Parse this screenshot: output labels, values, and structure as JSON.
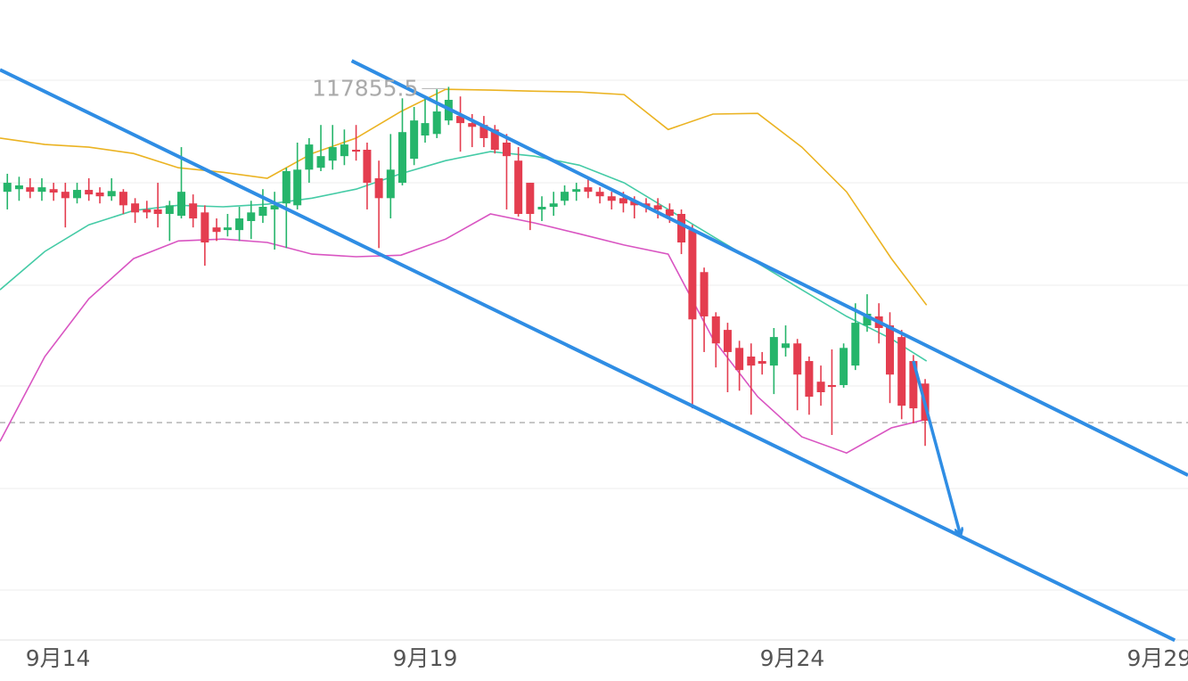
{
  "chart_data": {
    "type": "candlestick",
    "x": [
      13.31,
      13.47,
      13.62,
      13.78,
      13.94,
      14.1,
      14.26,
      14.42,
      14.57,
      14.73,
      14.89,
      15.05,
      15.21,
      15.36,
      15.52,
      15.68,
      15.84,
      16.0,
      16.16,
      16.31,
      16.47,
      16.63,
      16.79,
      16.95,
      17.11,
      17.26,
      17.42,
      17.58,
      17.74,
      17.9,
      18.06,
      18.21,
      18.37,
      18.53,
      18.69,
      18.85,
      19.0,
      19.16,
      19.32,
      19.48,
      19.64,
      19.8,
      19.95,
      20.11,
      20.27,
      20.43,
      20.59,
      20.75,
      20.9,
      21.06,
      21.22,
      21.38,
      21.54,
      21.7,
      21.85,
      22.01,
      22.17,
      22.33,
      22.49,
      22.64,
      22.8,
      22.96,
      23.12,
      23.28,
      23.44,
      23.59,
      23.75,
      23.91,
      24.07,
      24.23,
      24.39,
      24.54,
      24.7,
      24.86,
      25.02,
      25.18,
      25.33,
      25.49,
      25.65,
      25.81
    ],
    "open": [
      115060,
      115130,
      115180,
      115060,
      115130,
      115060,
      114890,
      115110,
      115040,
      114940,
      115060,
      114750,
      114590,
      114590,
      114470,
      114420,
      114750,
      114510,
      114110,
      114040,
      114040,
      114280,
      114420,
      114590,
      114750,
      114700,
      115650,
      115700,
      115890,
      116010,
      116180,
      116180,
      115420,
      114890,
      115300,
      115940,
      116560,
      116600,
      116960,
      117080,
      116890,
      116840,
      116720,
      116370,
      115890,
      115300,
      114590,
      114660,
      114820,
      115060,
      115180,
      115060,
      114940,
      114890,
      114820,
      114750,
      114700,
      114590,
      114470,
      114040,
      112920,
      111740,
      111380,
      110900,
      110670,
      110550,
      110430,
      110900,
      111020,
      110550,
      110000,
      109910,
      109910,
      110430,
      111500,
      111740,
      111500,
      111190,
      110550,
      109950
    ],
    "high": [
      115540,
      115460,
      115420,
      115420,
      115300,
      115300,
      115300,
      115420,
      115180,
      115420,
      115130,
      114890,
      114820,
      115300,
      114820,
      116250,
      114990,
      114700,
      114350,
      114470,
      114660,
      114820,
      115130,
      115060,
      115700,
      116370,
      116490,
      116840,
      116840,
      116720,
      116840,
      116370,
      115890,
      116600,
      117550,
      117320,
      117550,
      117790,
      117855.5,
      117600,
      117130,
      117080,
      116840,
      116600,
      116250,
      115300,
      114940,
      115060,
      115230,
      115300,
      115420,
      115180,
      115060,
      115060,
      114940,
      114890,
      114890,
      114750,
      114590,
      114180,
      113040,
      111850,
      111570,
      111090,
      111020,
      110790,
      111430,
      111500,
      111140,
      110670,
      110430,
      110860,
      111020,
      112090,
      112330,
      112090,
      111850,
      111380,
      110710,
      110070
    ],
    "low": [
      114590,
      114820,
      114890,
      114820,
      114820,
      114110,
      114750,
      114820,
      114750,
      114820,
      114470,
      114230,
      114350,
      114110,
      113750,
      114350,
      114110,
      113090,
      113750,
      113870,
      113750,
      113800,
      114230,
      113520,
      113560,
      114590,
      115300,
      115610,
      115650,
      115770,
      115890,
      114590,
      113560,
      114350,
      115230,
      115770,
      116370,
      116490,
      116840,
      116130,
      116250,
      116250,
      116080,
      114590,
      114400,
      114040,
      114280,
      114420,
      114700,
      114820,
      114890,
      114750,
      114590,
      114510,
      114350,
      114510,
      114350,
      114230,
      113400,
      109290,
      110790,
      110380,
      109720,
      109760,
      109120,
      110190,
      109670,
      110670,
      109240,
      109120,
      109360,
      108580,
      109840,
      110310,
      111330,
      111020,
      109430,
      109000,
      108890,
      108290
    ],
    "close": [
      115300,
      115230,
      115060,
      115180,
      115040,
      114890,
      115110,
      114990,
      114940,
      115080,
      114700,
      114510,
      114510,
      114470,
      114700,
      115060,
      114350,
      113710,
      113990,
      114110,
      114350,
      114510,
      114660,
      114700,
      115610,
      115650,
      116320,
      116010,
      116250,
      116320,
      116130,
      115300,
      114890,
      115650,
      116650,
      116960,
      116890,
      117200,
      117510,
      116890,
      116790,
      116490,
      116180,
      116010,
      114470,
      114470,
      114660,
      114750,
      115060,
      115130,
      115060,
      114940,
      114820,
      114750,
      114700,
      114660,
      114590,
      114420,
      113710,
      111660,
      111740,
      111020,
      110790,
      110310,
      110430,
      110480,
      111190,
      111020,
      110190,
      109600,
      109720,
      109860,
      110900,
      111570,
      111810,
      111430,
      110190,
      109360,
      109290,
      108960
    ],
    "up_color": "#26b56b",
    "down_color": "#e43d4f",
    "xlim": [
      13.21,
      29.39
    ],
    "ylim": [
      103070,
      120170
    ],
    "xticks": [
      {
        "value": 14,
        "label": "9月14"
      },
      {
        "value": 19,
        "label": "9月19"
      },
      {
        "value": 24,
        "label": "9月24"
      },
      {
        "value": 29,
        "label": "9月29"
      }
    ],
    "overlays": [
      {
        "color": "#ebb322",
        "x": [
          13.21,
          13.82,
          14.42,
          15.03,
          15.64,
          16.25,
          16.85,
          17.46,
          18.06,
          18.67,
          19.28,
          19.89,
          20.49,
          21.1,
          21.71,
          22.31,
          22.92,
          23.53,
          24.13,
          24.74,
          25.35,
          25.83
        ],
        "values": [
          116490,
          116320,
          116250,
          116080,
          115700,
          115580,
          115420,
          116080,
          116490,
          117200,
          117790,
          117770,
          117740,
          117720,
          117650,
          116720,
          117130,
          117150,
          116250,
          115060,
          113280,
          112040
        ]
      },
      {
        "color": "#45cba6",
        "x": [
          13.21,
          13.82,
          14.42,
          15.03,
          15.64,
          16.25,
          16.85,
          17.46,
          18.06,
          18.67,
          19.28,
          19.89,
          20.49,
          21.1,
          21.71,
          22.31,
          22.92,
          23.53,
          24.13,
          24.74,
          25.35,
          25.83
        ],
        "values": [
          112450,
          113470,
          114180,
          114560,
          114700,
          114660,
          114730,
          114890,
          115130,
          115540,
          115890,
          116130,
          116010,
          115770,
          115300,
          114590,
          113870,
          113160,
          112450,
          111740,
          111140,
          110550
        ]
      },
      {
        "color": "#d955c2",
        "x": [
          13.21,
          13.82,
          14.42,
          15.03,
          15.64,
          16.25,
          16.85,
          17.46,
          18.06,
          18.67,
          19.28,
          19.89,
          20.49,
          21.1,
          21.71,
          22.31,
          22.92,
          23.53,
          24.13,
          24.74,
          25.35,
          25.83
        ],
        "values": [
          108410,
          110670,
          112210,
          113280,
          113750,
          113800,
          113710,
          113400,
          113330,
          113370,
          113800,
          114470,
          114230,
          113940,
          113640,
          113400,
          111140,
          109600,
          108530,
          108100,
          108770,
          109000
        ]
      }
    ],
    "trend_color": "#2f8de4",
    "trend_lines": [
      {
        "x": [
          18.0,
          29.39
        ],
        "values": [
          118550,
          107510
        ]
      },
      {
        "x": [
          13.21,
          29.21
        ],
        "values": [
          118310,
          103110
        ]
      }
    ],
    "arrow": {
      "x": [
        25.65,
        26.29
      ],
      "values": [
        110550,
        105920
      ]
    },
    "last_price": 108910
  }
}
